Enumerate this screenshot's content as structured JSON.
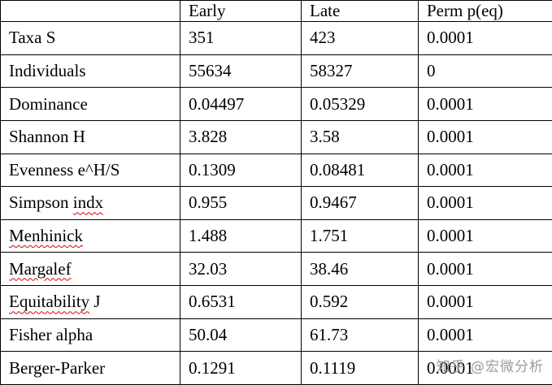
{
  "watermark": "知乎 @宏微分析",
  "table": {
    "headers": [
      "",
      "Early",
      "Late",
      "Perm p(eq)"
    ],
    "rows": [
      {
        "label": "Taxa S",
        "misspelled": "",
        "values": [
          "351",
          "423",
          "0.0001"
        ]
      },
      {
        "label": "Individuals",
        "misspelled": "",
        "values": [
          "55634",
          "58327",
          "0"
        ]
      },
      {
        "label": "Dominance",
        "misspelled": "",
        "values": [
          "0.04497",
          "0.05329",
          "0.0001"
        ]
      },
      {
        "label": "Shannon H",
        "misspelled": "",
        "values": [
          "3.828",
          "3.58",
          "0.0001"
        ]
      },
      {
        "label": "Evenness e^H/S",
        "misspelled": "",
        "values": [
          "0.1309",
          "0.08481",
          "0.0001"
        ]
      },
      {
        "label": "Simpson indx",
        "misspelled": "indx",
        "values": [
          "0.955",
          "0.9467",
          "0.0001"
        ]
      },
      {
        "label": "Menhinick",
        "misspelled": "Menhinick",
        "values": [
          "1.488",
          "1.751",
          "0.0001"
        ]
      },
      {
        "label": "Margalef",
        "misspelled": "Margalef",
        "values": [
          "32.03",
          "38.46",
          "0.0001"
        ]
      },
      {
        "label": "Equitability J",
        "misspelled": "Equitability",
        "values": [
          "0.6531",
          "0.592",
          "0.0001"
        ]
      },
      {
        "label": "Fisher alpha",
        "misspelled": "",
        "values": [
          "50.04",
          "61.73",
          "0.0001"
        ]
      },
      {
        "label": "Berger-Parker",
        "misspelled": "",
        "values": [
          "0.1291",
          "0.1119",
          "0.0001"
        ]
      }
    ]
  }
}
